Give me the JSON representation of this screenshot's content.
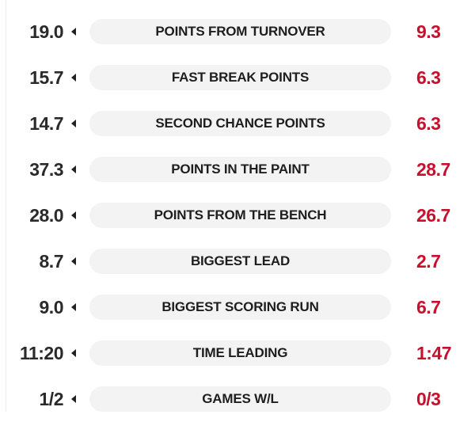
{
  "colors": {
    "left_value": "#2a2a2a",
    "right_value": "#c8102e",
    "pill_background": "#f3f3f3",
    "label": "#1e1e1e"
  },
  "icons": {
    "row_marker": "caret-left-icon"
  },
  "stats": [
    {
      "left": "19.0",
      "label": "POINTS FROM TURNOVER",
      "right": "9.3"
    },
    {
      "left": "15.7",
      "label": "FAST BREAK POINTS",
      "right": "6.3"
    },
    {
      "left": "14.7",
      "label": "SECOND CHANCE POINTS",
      "right": "6.3"
    },
    {
      "left": "37.3",
      "label": "POINTS IN THE PAINT",
      "right": "28.7"
    },
    {
      "left": "28.0",
      "label": "POINTS FROM THE BENCH",
      "right": "26.7"
    },
    {
      "left": "8.7",
      "label": "BIGGEST LEAD",
      "right": "2.7"
    },
    {
      "left": "9.0",
      "label": "BIGGEST SCORING RUN",
      "right": "6.7"
    },
    {
      "left": "11:20",
      "label": "TIME LEADING",
      "right": "1:47"
    },
    {
      "left": "1/2",
      "label": "GAMES W/L",
      "right": "0/3"
    }
  ]
}
